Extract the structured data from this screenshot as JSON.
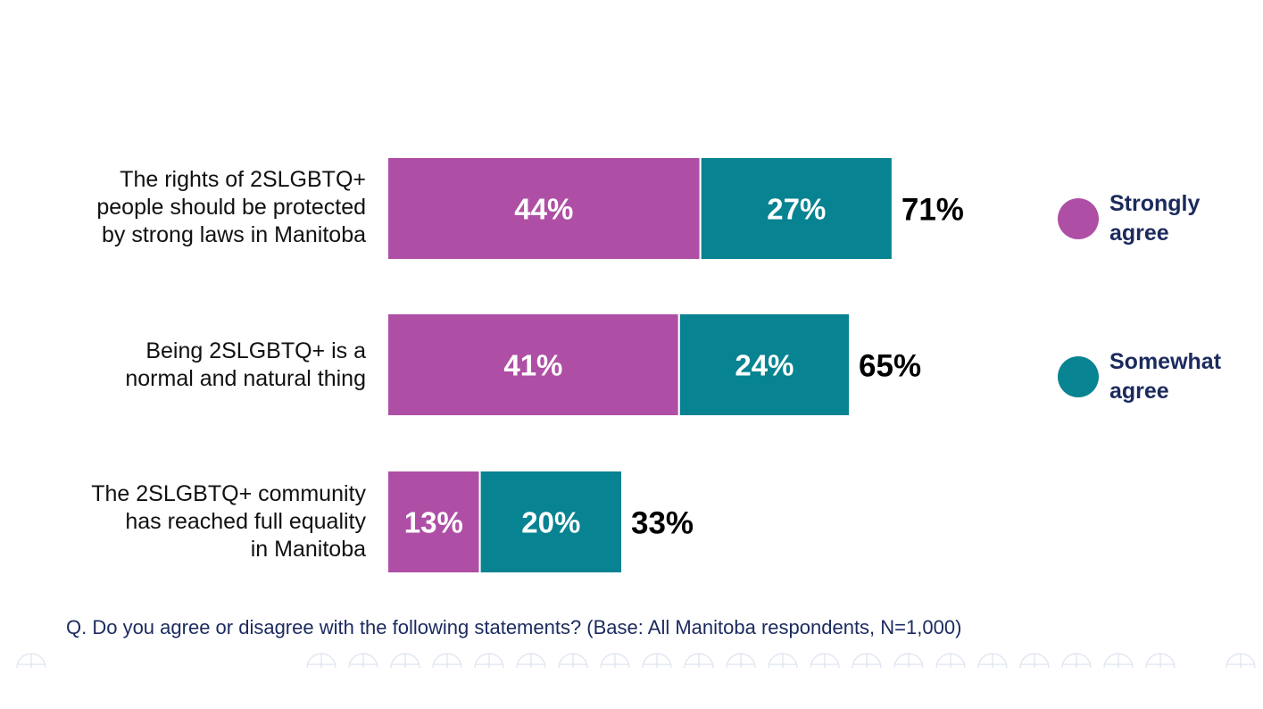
{
  "chart_data": {
    "type": "bar",
    "orientation": "horizontal",
    "stacked": true,
    "categories": [
      "The rights of 2SLGBTQ+\npeople should be protected\nby strong laws in Manitoba",
      "Being 2SLGBTQ+ is a\nnormal and natural thing",
      "The 2SLGBTQ+ community\nhas reached full equality\nin Manitoba"
    ],
    "series": [
      {
        "name": "Strongly agree",
        "values": [
          44,
          41,
          13
        ],
        "labels": [
          "44%",
          "41%",
          "13%"
        ],
        "color": "#ae4fa5"
      },
      {
        "name": "Somewhat agree",
        "values": [
          27,
          24,
          20
        ],
        "labels": [
          "27%",
          "24%",
          "20%"
        ],
        "color": "#078391"
      }
    ],
    "totals": [
      71,
      65,
      33
    ],
    "total_labels": [
      "71%",
      "65%",
      "33%"
    ],
    "legend": "right",
    "grid": false
  },
  "legend_items": [
    {
      "text": "Strongly agree",
      "color": "#ae4fa5"
    },
    {
      "text": "Somewhat agree",
      "color": "#078391"
    }
  ],
  "footnote": "Q. Do you agree or disagree with the following statements? (Base: All Manitoba respondents, N=1,000)"
}
